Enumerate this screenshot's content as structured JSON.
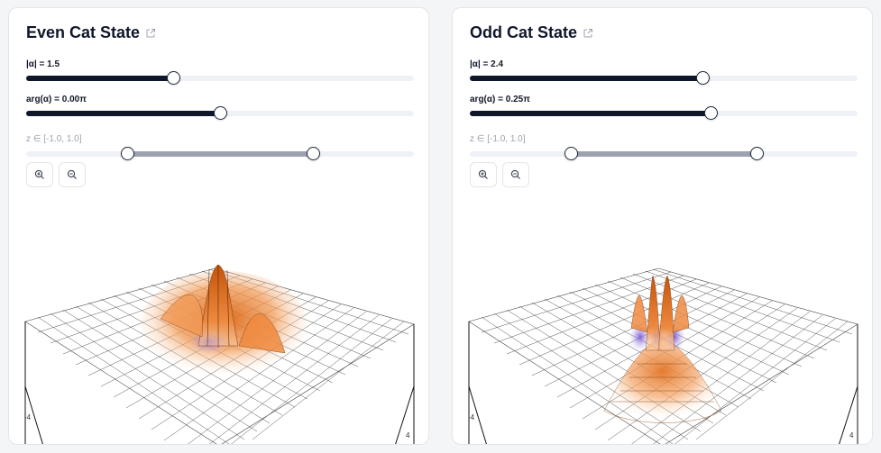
{
  "cards": [
    {
      "title": "Even Cat State",
      "alpha_label": "|α| = 1.5",
      "alpha_fraction": 0.38,
      "arg_label": "arg(α) = 0.00π",
      "arg_fraction": 0.5,
      "z_label": "z ∈ [-1.0, 1.0]",
      "z_range_fraction": [
        0.26,
        0.74
      ],
      "axis_ticks": [
        "-4",
        "4"
      ]
    },
    {
      "title": "Odd Cat State",
      "alpha_label": "|α| = 2.4",
      "alpha_fraction": 0.6,
      "arg_label": "arg(α) = 0.25π",
      "arg_fraction": 0.62,
      "z_label": "z ∈ [-1.0, 1.0]",
      "z_range_fraction": [
        0.26,
        0.74
      ],
      "axis_ticks": [
        "-4",
        "4"
      ]
    }
  ],
  "icons": {
    "external_link": "external-link-icon",
    "zoom_in": "zoom-in-icon",
    "zoom_out": "zoom-out-icon"
  },
  "colors": {
    "accent_dark": "#0f172a",
    "surface_positive": "#d9620f",
    "surface_negative": "#8b6bd6",
    "range_fill": "#9ca3af"
  }
}
